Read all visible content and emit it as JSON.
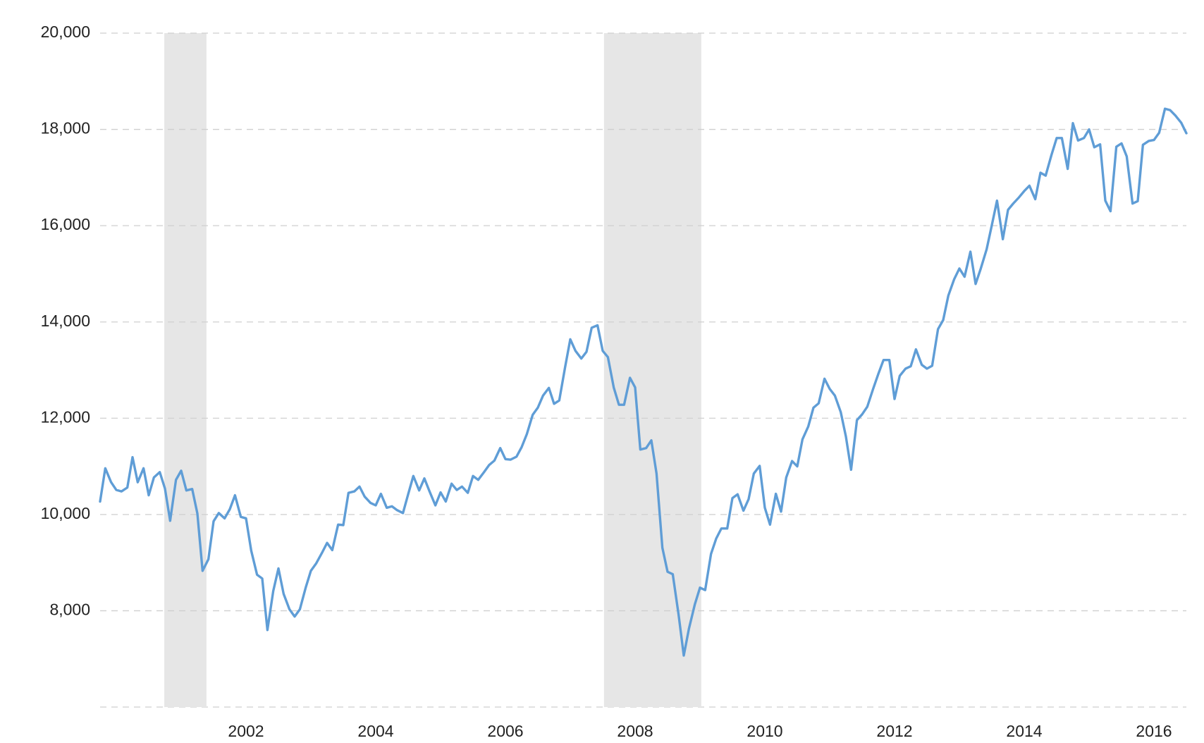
{
  "chart_data": {
    "type": "line",
    "color": "#5f9dd6",
    "shade_color": "#e6e6e6",
    "grid": true,
    "xlim": [
      1999.75,
      2016.5
    ],
    "ylim": [
      6000,
      20000
    ],
    "xticks": [
      2002,
      2004,
      2006,
      2008,
      2010,
      2012,
      2014,
      2016
    ],
    "yticks": [
      {
        "value": 8000,
        "label": "8,000"
      },
      {
        "value": 10000,
        "label": "10,000"
      },
      {
        "value": 12000,
        "label": "12,000"
      },
      {
        "value": 14000,
        "label": "14,000"
      },
      {
        "value": 16000,
        "label": "16,000"
      },
      {
        "value": 18000,
        "label": "18,000"
      },
      {
        "value": 20000,
        "label": "20,000"
      }
    ],
    "shaded_ranges": [
      [
        2000.74,
        2001.39
      ],
      [
        2007.52,
        2009.02
      ]
    ],
    "x": [
      1999.75,
      1999.83,
      1999.92,
      2000,
      2000.08,
      2000.17,
      2000.25,
      2000.33,
      2000.42,
      2000.5,
      2000.58,
      2000.67,
      2000.75,
      2000.83,
      2000.92,
      2001,
      2001.08,
      2001.17,
      2001.25,
      2001.33,
      2001.42,
      2001.5,
      2001.58,
      2001.67,
      2001.75,
      2001.83,
      2001.92,
      2002,
      2002.08,
      2002.17,
      2002.25,
      2002.33,
      2002.42,
      2002.5,
      2002.58,
      2002.67,
      2002.75,
      2002.83,
      2002.92,
      2003,
      2003.08,
      2003.17,
      2003.25,
      2003.33,
      2003.42,
      2003.5,
      2003.58,
      2003.67,
      2003.75,
      2003.83,
      2003.92,
      2004,
      2004.08,
      2004.17,
      2004.25,
      2004.33,
      2004.42,
      2004.5,
      2004.58,
      2004.67,
      2004.75,
      2004.83,
      2004.92,
      2005,
      2005.08,
      2005.17,
      2005.25,
      2005.33,
      2005.42,
      2005.5,
      2005.58,
      2005.67,
      2005.75,
      2005.83,
      2005.92,
      2006,
      2006.08,
      2006.17,
      2006.25,
      2006.33,
      2006.42,
      2006.5,
      2006.58,
      2006.67,
      2006.75,
      2006.83,
      2006.92,
      2007,
      2007.08,
      2007.17,
      2007.25,
      2007.33,
      2007.42,
      2007.5,
      2007.58,
      2007.67,
      2007.75,
      2007.83,
      2007.92,
      2008,
      2008.08,
      2008.17,
      2008.25,
      2008.33,
      2008.42,
      2008.5,
      2008.58,
      2008.67,
      2008.75,
      2008.83,
      2008.92,
      2009,
      2009.08,
      2009.17,
      2009.25,
      2009.33,
      2009.42,
      2009.5,
      2009.58,
      2009.67,
      2009.75,
      2009.83,
      2009.92,
      2010,
      2010.08,
      2010.17,
      2010.25,
      2010.33,
      2010.42,
      2010.5,
      2010.58,
      2010.67,
      2010.75,
      2010.83,
      2010.92,
      2011,
      2011.08,
      2011.17,
      2011.25,
      2011.33,
      2011.42,
      2011.5,
      2011.58,
      2011.67,
      2011.75,
      2011.83,
      2011.92,
      2012,
      2012.08,
      2012.17,
      2012.25,
      2012.33,
      2012.42,
      2012.5,
      2012.58,
      2012.67,
      2012.75,
      2012.83,
      2012.92,
      2013,
      2013.08,
      2013.17,
      2013.25,
      2013.33,
      2013.42,
      2013.5,
      2013.58,
      2013.67,
      2013.75,
      2013.83,
      2013.92,
      2014,
      2014.08,
      2014.17,
      2014.25,
      2014.33,
      2014.42,
      2014.5,
      2014.58,
      2014.67,
      2014.75,
      2014.83,
      2014.92,
      2015,
      2015.08,
      2015.17,
      2015.25,
      2015.33,
      2015.42,
      2015.5,
      2015.58,
      2015.67,
      2015.75,
      2015.83,
      2015.92,
      2016,
      2016.08,
      2016.17,
      2016.25,
      2016.33,
      2016.42,
      2016.5
    ],
    "values": [
      10270,
      10960,
      10670,
      10510,
      10480,
      10560,
      11190,
      10670,
      10960,
      10400,
      10770,
      10880,
      10540,
      9870,
      10720,
      10910,
      10500,
      10530,
      10020,
      8830,
      9070,
      9860,
      10030,
      9920,
      10110,
      10400,
      9950,
      9920,
      9250,
      8750,
      8670,
      7600,
      8410,
      8880,
      8350,
      8030,
      7880,
      8030,
      8480,
      8830,
      8980,
      9200,
      9410,
      9260,
      9790,
      9780,
      10450,
      10480,
      10580,
      10370,
      10240,
      10190,
      10430,
      10140,
      10170,
      10090,
      10030,
      10420,
      10800,
      10500,
      10750,
      10480,
      10190,
      10460,
      10270,
      10640,
      10510,
      10580,
      10450,
      10800,
      10720,
      10880,
      11030,
      11120,
      11380,
      11150,
      11140,
      11200,
      11400,
      11670,
      12070,
      12220,
      12470,
      12630,
      12300,
      12370,
      13060,
      13640,
      13400,
      13240,
      13380,
      13880,
      13930,
      13400,
      13270,
      12640,
      12280,
      12280,
      12840,
      12640,
      11350,
      11380,
      11540,
      10850,
      9310,
      8810,
      8760,
      7920,
      7070,
      7630,
      8130,
      8480,
      8430,
      9180,
      9500,
      9710,
      9710,
      10340,
      10420,
      10080,
      10320,
      10850,
      11010,
      10140,
      9790,
      10430,
      10060,
      10770,
      11110,
      11000,
      11560,
      11830,
      12220,
      12310,
      12820,
      12610,
      12470,
      12130,
      11620,
      10930,
      11960,
      12080,
      12240,
      12610,
      12920,
      13210,
      13210,
      12400,
      12880,
      13030,
      13080,
      13430,
      13110,
      13030,
      13090,
      13850,
      14040,
      14550,
      14890,
      15110,
      14940,
      15460,
      14790,
      15110,
      15510,
      16010,
      16520,
      15720,
      16330,
      16460,
      16590,
      16720,
      16830,
      16550,
      17100,
      17040,
      17470,
      17820,
      17820,
      17180,
      18130,
      17770,
      17820,
      18000,
      17630,
      17690,
      16520,
      16300,
      17640,
      17710,
      17440,
      16460,
      16510,
      17680,
      17760,
      17780,
      17930,
      18430,
      18400,
      18290,
      18140,
      17920
    ]
  }
}
